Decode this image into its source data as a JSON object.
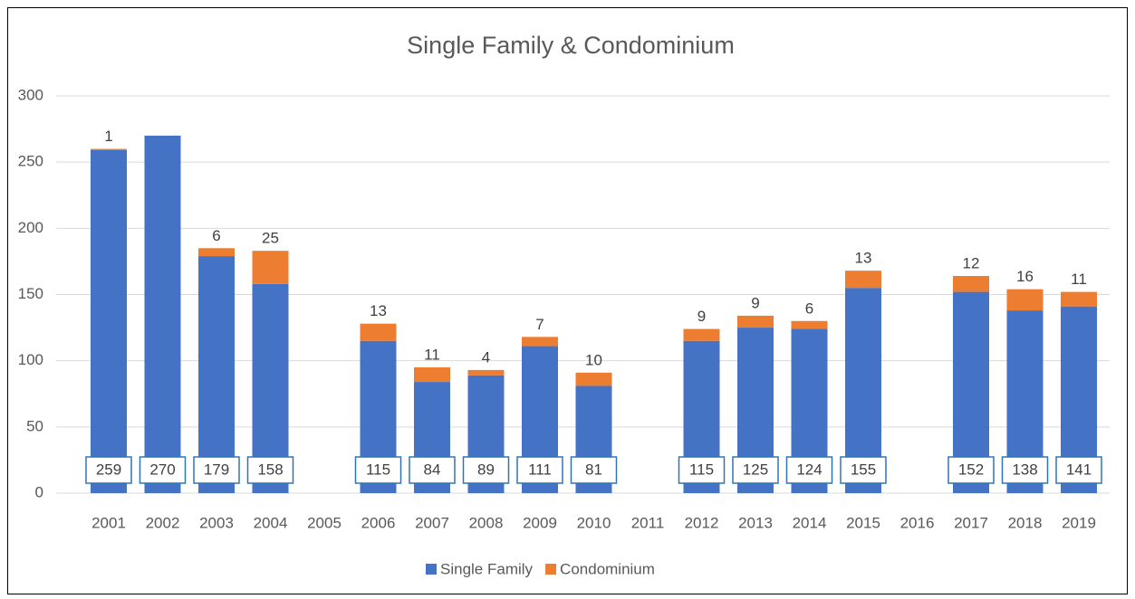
{
  "chart_data": {
    "type": "stacked_bar",
    "title": "Single Family & Condominium",
    "categories": [
      "2001",
      "2002",
      "2003",
      "2004",
      "2005",
      "2006",
      "2007",
      "2008",
      "2009",
      "2010",
      "2011",
      "2012",
      "2013",
      "2014",
      "2015",
      "2016",
      "2017",
      "2018",
      "2019"
    ],
    "series": [
      {
        "name": "Single Family",
        "color": "#4472c4",
        "values": [
          259,
          270,
          179,
          158,
          null,
          115,
          84,
          89,
          111,
          81,
          null,
          115,
          125,
          124,
          155,
          null,
          152,
          138,
          141
        ]
      },
      {
        "name": "Condominium",
        "color": "#ed7d31",
        "values": [
          1,
          null,
          6,
          25,
          null,
          13,
          11,
          4,
          7,
          10,
          null,
          9,
          9,
          6,
          13,
          null,
          12,
          16,
          11
        ]
      }
    ],
    "ylim": [
      0,
      300
    ],
    "yticks": [
      0,
      50,
      100,
      150,
      200,
      250,
      300
    ],
    "grid": true,
    "legend": "bottom"
  }
}
